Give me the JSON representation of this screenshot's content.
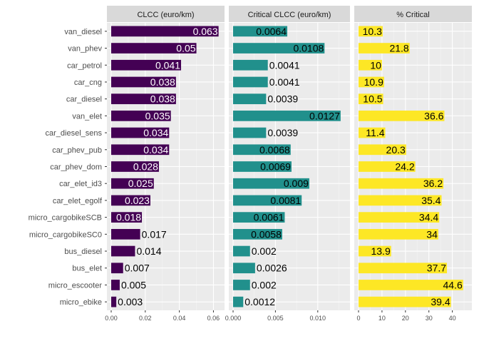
{
  "chart_data": {
    "type": "bar",
    "orientation": "horizontal",
    "categories": [
      "van_diesel",
      "van_phev",
      "car_petrol",
      "car_cng",
      "car_diesel",
      "van_elet",
      "car_diesel_sens",
      "car_phev_pub",
      "car_phev_dom",
      "car_elet_id3",
      "car_elet_egolf",
      "micro_cargobikeSCB",
      "micro_cargobikeSC0",
      "bus_diesel",
      "bus_elet",
      "micro_escooter",
      "micro_ebike"
    ],
    "panels": [
      {
        "title": "CLCC (euro/km)",
        "color": "#440154",
        "xlim": [
          0,
          0.064
        ],
        "ticks": [
          0.0,
          0.02,
          0.04,
          0.06
        ],
        "tick_labels": [
          "0.00",
          "0.02",
          "0.04",
          "0.06"
        ],
        "values": [
          0.063,
          0.05,
          0.041,
          0.038,
          0.038,
          0.035,
          0.034,
          0.034,
          0.028,
          0.025,
          0.023,
          0.018,
          0.017,
          0.014,
          0.007,
          0.005,
          0.003
        ],
        "labels": [
          "0.063",
          "0.05",
          "0.041",
          "0.038",
          "0.038",
          "0.035",
          "0.034",
          "0.034",
          "0.028",
          "0.025",
          "0.023",
          "0.018",
          "0.017",
          "0.014",
          "0.007",
          "0.005",
          "0.003"
        ]
      },
      {
        "title": "Critical CLCC (euro/km)",
        "color": "#21908C",
        "xlim": [
          0,
          0.0133
        ],
        "ticks": [
          0.0,
          0.005,
          0.01
        ],
        "tick_labels": [
          "0.000",
          "0.005",
          "0.010"
        ],
        "values": [
          0.0064,
          0.0108,
          0.0041,
          0.0041,
          0.0039,
          0.0127,
          0.0039,
          0.0068,
          0.0069,
          0.009,
          0.0081,
          0.0061,
          0.0058,
          0.002,
          0.0026,
          0.002,
          0.0012
        ],
        "labels": [
          "0.0064",
          "0.0108",
          "0.0041",
          "0.0041",
          "0.0039",
          "0.0127",
          "0.0039",
          "0.0068",
          "0.0069",
          "0.009",
          "0.0081",
          "0.0061",
          "0.0058",
          "0.002",
          "0.0026",
          "0.002",
          "0.0012"
        ]
      },
      {
        "title": "% Critical",
        "color": "#FDE725",
        "xlim": [
          0,
          46.5
        ],
        "ticks": [
          0,
          10,
          20,
          30,
          40
        ],
        "tick_labels": [
          "0",
          "10",
          "20",
          "30",
          "40"
        ],
        "values": [
          10.3,
          21.8,
          10,
          10.9,
          10.5,
          36.6,
          11.4,
          20.3,
          24.2,
          36.2,
          35.4,
          34.4,
          34,
          13.9,
          37.7,
          44.6,
          39.4
        ],
        "labels": [
          "10.3",
          "21.8",
          "10",
          "10.9",
          "10.5",
          "36.6",
          "11.4",
          "20.3",
          "24.2",
          "36.2",
          "35.4",
          "34.4",
          "34",
          "13.9",
          "37.7",
          "44.6",
          "39.4"
        ]
      }
    ]
  }
}
